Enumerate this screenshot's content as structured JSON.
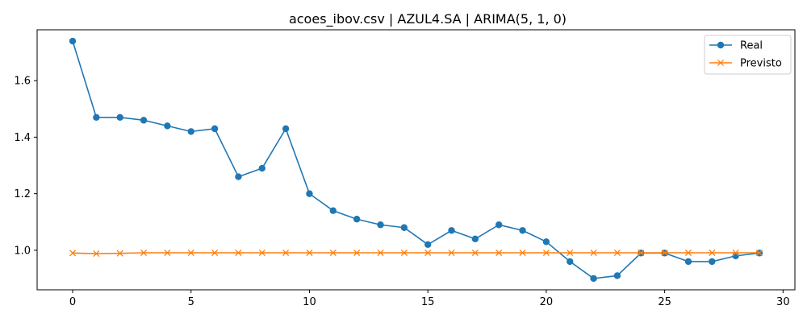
{
  "chart_data": {
    "type": "line",
    "title": "acoes_ibov.csv | AZUL4.SA | ARIMA(5, 1, 0)",
    "xlabel": "",
    "ylabel": "",
    "xlim": [
      -1.5,
      30.5
    ],
    "ylim": [
      0.86,
      1.78
    ],
    "xticks": [
      0,
      5,
      10,
      15,
      20,
      25,
      30
    ],
    "xtick_labels": [
      "0",
      "5",
      "10",
      "15",
      "20",
      "25",
      "30"
    ],
    "yticks": [
      1.0,
      1.2,
      1.4,
      1.6
    ],
    "ytick_labels": [
      "1.0",
      "1.2",
      "1.4",
      "1.6"
    ],
    "grid": false,
    "legend_position": "top-right",
    "x": [
      0,
      1,
      2,
      3,
      4,
      5,
      6,
      7,
      8,
      9,
      10,
      11,
      12,
      13,
      14,
      15,
      16,
      17,
      18,
      19,
      20,
      21,
      22,
      23,
      24,
      25,
      26,
      27,
      28,
      29
    ],
    "series": [
      {
        "name": "Real",
        "color": "#1f77b4",
        "marker": "circle",
        "values": [
          1.74,
          1.47,
          1.47,
          1.46,
          1.44,
          1.42,
          1.43,
          1.26,
          1.29,
          1.43,
          1.2,
          1.14,
          1.11,
          1.09,
          1.08,
          1.02,
          1.07,
          1.04,
          1.09,
          1.07,
          1.03,
          0.96,
          0.9,
          0.91,
          0.99,
          0.99,
          0.96,
          0.96,
          0.98,
          0.99
        ]
      },
      {
        "name": "Previsto",
        "color": "#ff7f0e",
        "marker": "x",
        "values": [
          0.99,
          0.988,
          0.989,
          0.991,
          0.991,
          0.991,
          0.991,
          0.991,
          0.991,
          0.991,
          0.991,
          0.991,
          0.991,
          0.991,
          0.991,
          0.991,
          0.991,
          0.991,
          0.991,
          0.991,
          0.991,
          0.991,
          0.991,
          0.991,
          0.991,
          0.991,
          0.991,
          0.991,
          0.991,
          0.991
        ]
      }
    ]
  }
}
